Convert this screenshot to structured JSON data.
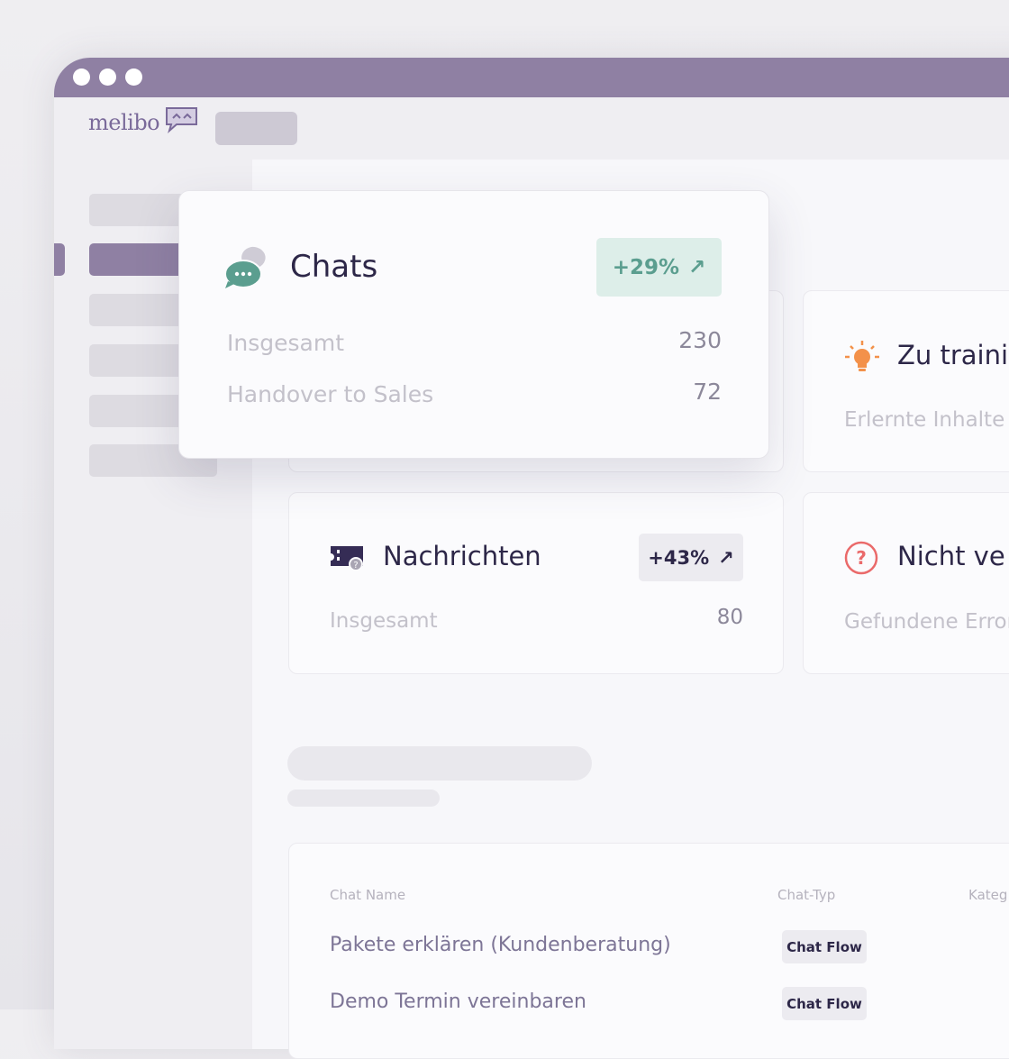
{
  "brand": {
    "name": "melibo",
    "color": "#8f80a3"
  },
  "popup": {
    "title": "Chats",
    "badge": "+29%",
    "badge_color": "#5b9e8f",
    "badge_bg": "#ddeee9",
    "rows": [
      {
        "label": "Insgesamt",
        "value": "230"
      },
      {
        "label": "Handover to Sales",
        "value": "72"
      }
    ]
  },
  "cards": [
    {
      "title": "Zu traini",
      "label": "Erlernte Inhalte",
      "icon": "lightbulb-icon",
      "icon_color": "#f3914a"
    },
    {
      "title": "Nachrichten",
      "badge": "+43%",
      "label": "Insgesamt",
      "value": "80",
      "icon": "ticket-icon"
    },
    {
      "title": "Nicht ve",
      "label": "Gefundene Error",
      "icon": "question-circle-icon",
      "icon_color": "#ea6a6a"
    }
  ],
  "table": {
    "headers": [
      "Chat Name",
      "Chat-Typ",
      "Kateg"
    ],
    "rows": [
      {
        "name": "Pakete erklären (Kundenberatung)",
        "type": "Chat Flow"
      },
      {
        "name": "Demo Termin vereinbaren",
        "type": "Chat Flow"
      }
    ]
  }
}
